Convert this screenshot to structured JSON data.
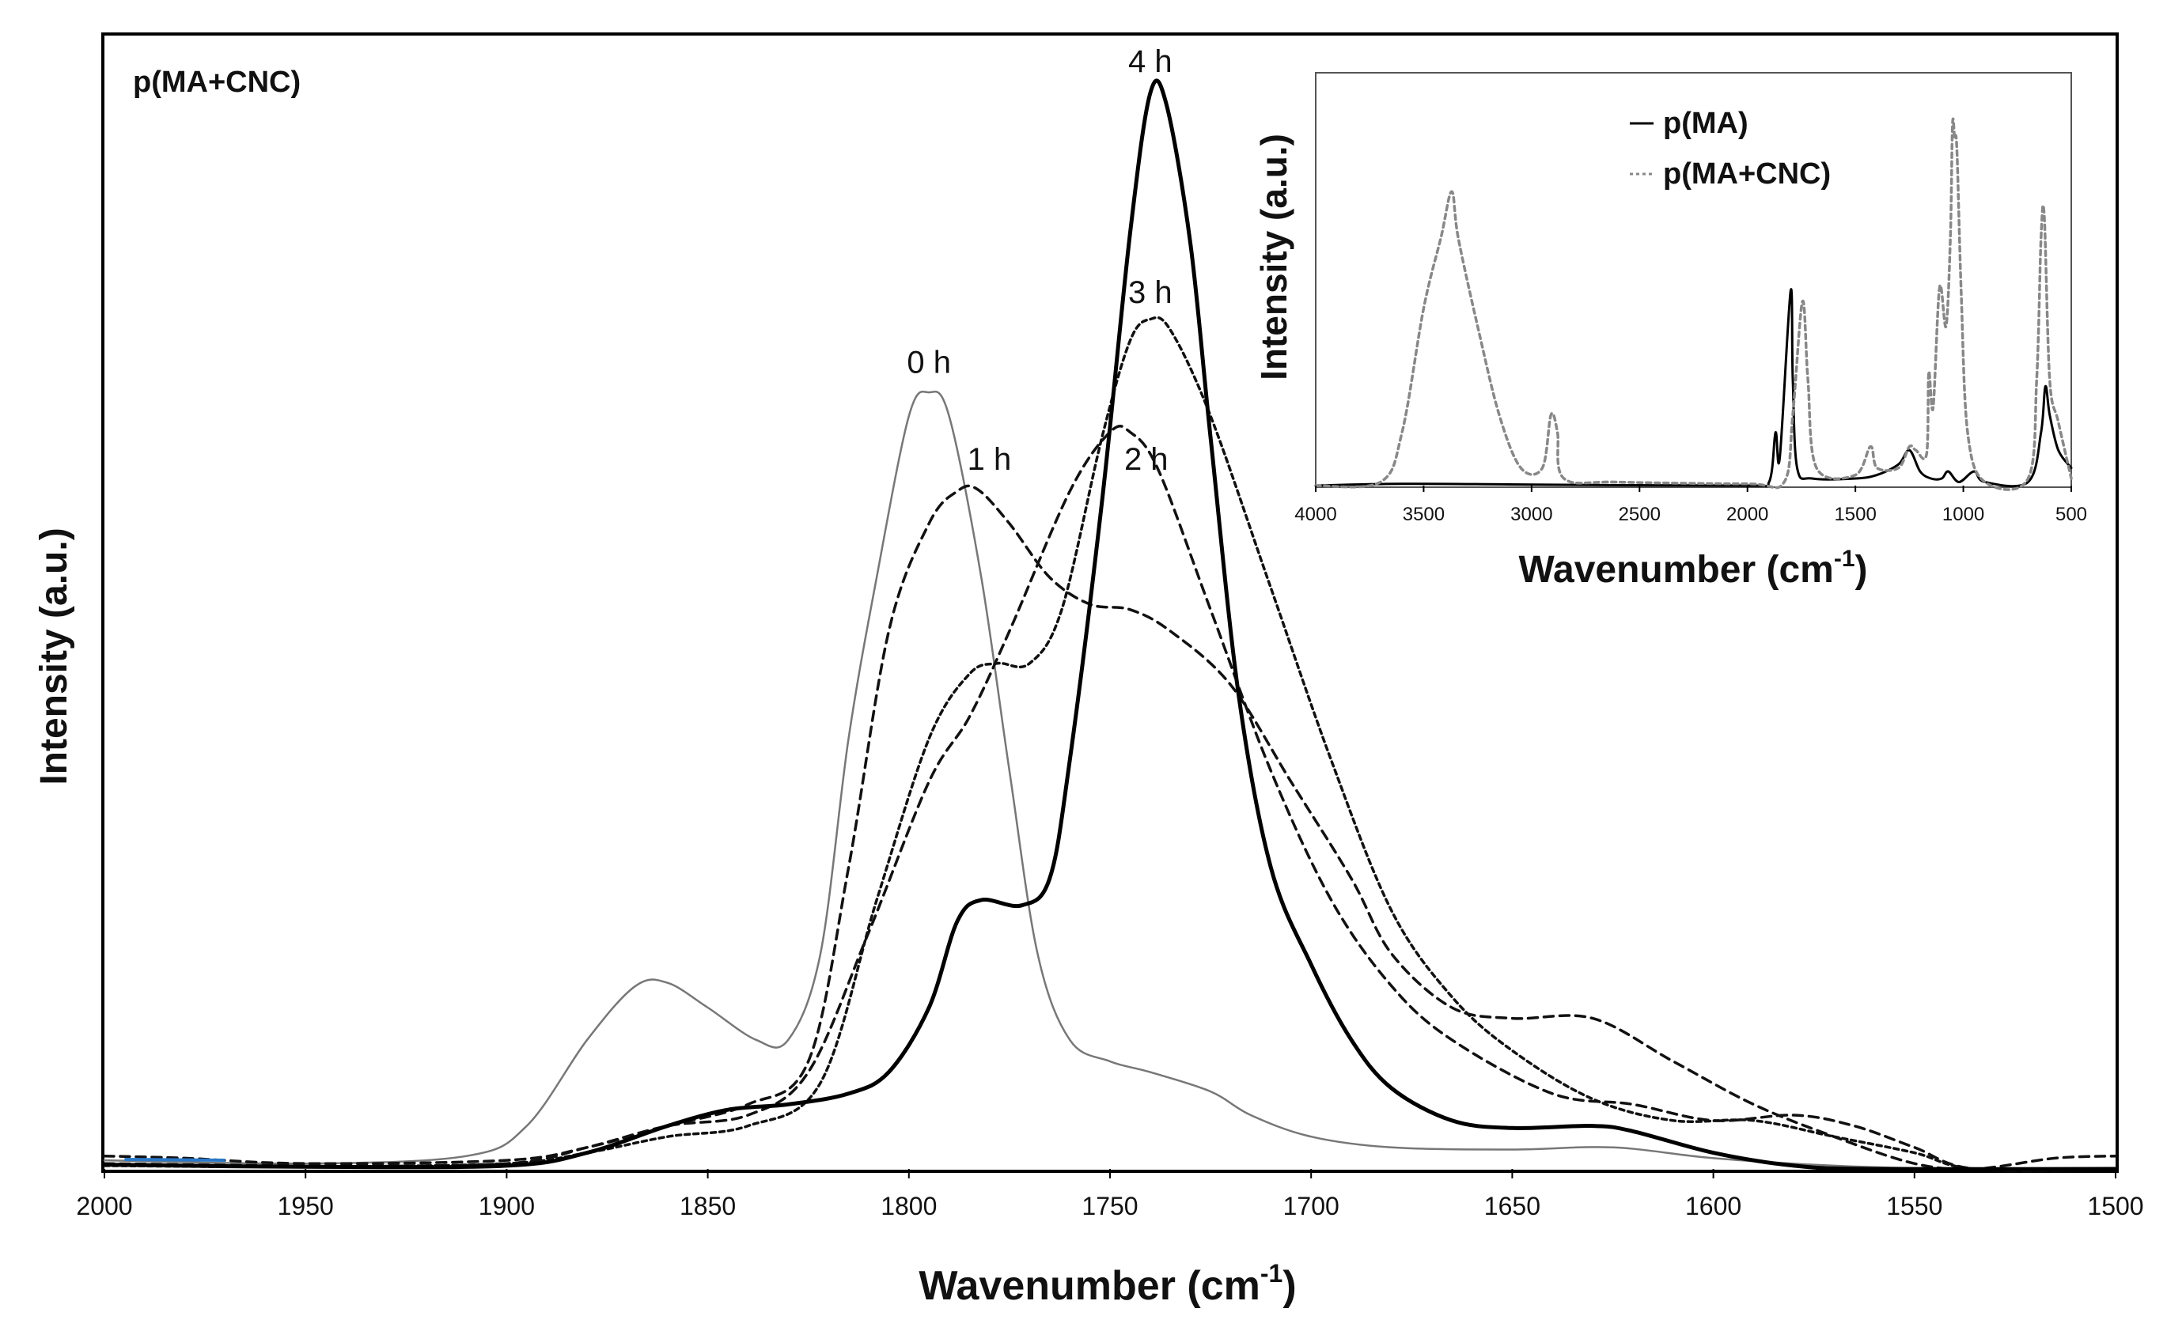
{
  "chart_data": [
    {
      "type": "line",
      "title": "p(MA+CNC)",
      "xlabel": "Wavenumber (cm",
      "xlabel_sup": "-1",
      "xlabel_close": ")",
      "ylabel": "Intensity (a.u.)",
      "xlim": [
        2000,
        1500
      ],
      "ylim": [
        0,
        1
      ],
      "xticks": [
        "2000",
        "1950",
        "1900",
        "1850",
        "1800",
        "1750",
        "1700",
        "1650",
        "1600",
        "1550",
        "1500"
      ],
      "series": [
        {
          "name": "0 h",
          "style": "thin-solid",
          "color": "#777777",
          "points": [
            [
              2000,
              0.008
            ],
            [
              1950,
              0.005
            ],
            [
              1910,
              0.012
            ],
            [
              1895,
              0.04
            ],
            [
              1880,
              0.12
            ],
            [
              1868,
              0.17
            ],
            [
              1860,
              0.173
            ],
            [
              1850,
              0.15
            ],
            [
              1838,
              0.12
            ],
            [
              1830,
              0.12
            ],
            [
              1822,
              0.2
            ],
            [
              1815,
              0.4
            ],
            [
              1808,
              0.55
            ],
            [
              1800,
              0.7
            ],
            [
              1795,
              0.722
            ],
            [
              1790,
              0.7
            ],
            [
              1782,
              0.55
            ],
            [
              1775,
              0.37
            ],
            [
              1768,
              0.2
            ],
            [
              1760,
              0.12
            ],
            [
              1750,
              0.1
            ],
            [
              1740,
              0.09
            ],
            [
              1725,
              0.072
            ],
            [
              1715,
              0.05
            ],
            [
              1700,
              0.03
            ],
            [
              1680,
              0.02
            ],
            [
              1650,
              0.018
            ],
            [
              1625,
              0.02
            ],
            [
              1600,
              0.01
            ],
            [
              1570,
              0.003
            ],
            [
              1540,
              0.0
            ],
            [
              1500,
              0.0
            ]
          ]
        },
        {
          "name": "1 h",
          "style": "dashed",
          "color": "#111111",
          "points": [
            [
              2000,
              0.012
            ],
            [
              1980,
              0.01
            ],
            [
              1950,
              0.005
            ],
            [
              1900,
              0.008
            ],
            [
              1880,
              0.02
            ],
            [
              1860,
              0.04
            ],
            [
              1840,
              0.06
            ],
            [
              1825,
              0.1
            ],
            [
              1815,
              0.28
            ],
            [
              1805,
              0.5
            ],
            [
              1795,
              0.6
            ],
            [
              1788,
              0.63
            ],
            [
              1783,
              0.632
            ],
            [
              1775,
              0.6
            ],
            [
              1765,
              0.55
            ],
            [
              1755,
              0.525
            ],
            [
              1745,
              0.52
            ],
            [
              1735,
              0.5
            ],
            [
              1720,
              0.45
            ],
            [
              1705,
              0.36
            ],
            [
              1690,
              0.27
            ],
            [
              1680,
              0.2
            ],
            [
              1665,
              0.15
            ],
            [
              1650,
              0.14
            ],
            [
              1630,
              0.14
            ],
            [
              1610,
              0.1
            ],
            [
              1590,
              0.06
            ],
            [
              1570,
              0.03
            ],
            [
              1550,
              0.005
            ],
            [
              1535,
              0.0
            ],
            [
              1515,
              0.01
            ],
            [
              1500,
              0.012
            ]
          ]
        },
        {
          "name": "2 h",
          "style": "dashed",
          "color": "#111111",
          "points": [
            [
              2000,
              0.005
            ],
            [
              1950,
              0.003
            ],
            [
              1900,
              0.005
            ],
            [
              1880,
              0.02
            ],
            [
              1860,
              0.04
            ],
            [
              1840,
              0.05
            ],
            [
              1825,
              0.09
            ],
            [
              1810,
              0.22
            ],
            [
              1795,
              0.36
            ],
            [
              1785,
              0.42
            ],
            [
              1775,
              0.5
            ],
            [
              1760,
              0.63
            ],
            [
              1750,
              0.685
            ],
            [
              1745,
              0.685
            ],
            [
              1738,
              0.65
            ],
            [
              1725,
              0.52
            ],
            [
              1710,
              0.37
            ],
            [
              1695,
              0.25
            ],
            [
              1680,
              0.17
            ],
            [
              1665,
              0.12
            ],
            [
              1640,
              0.07
            ],
            [
              1620,
              0.06
            ],
            [
              1600,
              0.045
            ],
            [
              1580,
              0.05
            ],
            [
              1565,
              0.04
            ],
            [
              1550,
              0.02
            ],
            [
              1535,
              0.0
            ],
            [
              1500,
              0.0
            ]
          ]
        },
        {
          "name": "3 h",
          "style": "dotted",
          "color": "#111111",
          "points": [
            [
              2000,
              0.003
            ],
            [
              1950,
              0.002
            ],
            [
              1900,
              0.005
            ],
            [
              1880,
              0.015
            ],
            [
              1860,
              0.03
            ],
            [
              1840,
              0.04
            ],
            [
              1822,
              0.08
            ],
            [
              1808,
              0.25
            ],
            [
              1795,
              0.4
            ],
            [
              1785,
              0.46
            ],
            [
              1778,
              0.47
            ],
            [
              1770,
              0.47
            ],
            [
              1762,
              0.52
            ],
            [
              1752,
              0.68
            ],
            [
              1745,
              0.77
            ],
            [
              1740,
              0.79
            ],
            [
              1735,
              0.78
            ],
            [
              1725,
              0.7
            ],
            [
              1710,
              0.54
            ],
            [
              1695,
              0.38
            ],
            [
              1680,
              0.24
            ],
            [
              1665,
              0.16
            ],
            [
              1650,
              0.11
            ],
            [
              1630,
              0.065
            ],
            [
              1610,
              0.045
            ],
            [
              1590,
              0.045
            ],
            [
              1570,
              0.03
            ],
            [
              1550,
              0.015
            ],
            [
              1535,
              0.0
            ],
            [
              1500,
              0.0
            ]
          ]
        },
        {
          "name": "4 h",
          "style": "bold-solid",
          "color": "#000000",
          "points": [
            [
              2000,
              0.004
            ],
            [
              1950,
              0.002
            ],
            [
              1900,
              0.003
            ],
            [
              1880,
              0.015
            ],
            [
              1860,
              0.04
            ],
            [
              1845,
              0.055
            ],
            [
              1830,
              0.06
            ],
            [
              1815,
              0.07
            ],
            [
              1805,
              0.09
            ],
            [
              1795,
              0.15
            ],
            [
              1788,
              0.23
            ],
            [
              1782,
              0.25
            ],
            [
              1772,
              0.245
            ],
            [
              1765,
              0.27
            ],
            [
              1760,
              0.38
            ],
            [
              1752,
              0.62
            ],
            [
              1745,
              0.87
            ],
            [
              1740,
              1.0
            ],
            [
              1736,
              0.99
            ],
            [
              1730,
              0.86
            ],
            [
              1725,
              0.68
            ],
            [
              1718,
              0.44
            ],
            [
              1710,
              0.28
            ],
            [
              1700,
              0.19
            ],
            [
              1690,
              0.12
            ],
            [
              1680,
              0.075
            ],
            [
              1665,
              0.045
            ],
            [
              1650,
              0.038
            ],
            [
              1630,
              0.04
            ],
            [
              1620,
              0.035
            ],
            [
              1600,
              0.015
            ],
            [
              1580,
              0.003
            ],
            [
              1560,
              0.0
            ],
            [
              1500,
              0.0
            ]
          ]
        }
      ],
      "annotations": [
        {
          "text": "0 h",
          "x": 1795,
          "y": 0.74
        },
        {
          "text": "1 h",
          "x": 1780,
          "y": 0.65
        },
        {
          "text": "2 h",
          "x": 1741,
          "y": 0.65
        },
        {
          "text": "3 h",
          "x": 1740,
          "y": 0.805
        },
        {
          "text": "4 h",
          "x": 1740,
          "y": 1.02
        }
      ]
    },
    {
      "type": "line",
      "title": "inset",
      "xlabel": "Wavenumber (cm",
      "xlabel_sup": "-1",
      "xlabel_close": ")",
      "ylabel": "Intensity (a.u.)",
      "xlim": [
        4000,
        500
      ],
      "ylim": [
        0,
        1
      ],
      "xticks": [
        "4000",
        "3500",
        "3000",
        "2500",
        "2000",
        "1500",
        "1000",
        "500"
      ],
      "legend": [
        "p(MA)",
        "p(MA+CNC)"
      ],
      "series": [
        {
          "name": "p(MA)",
          "style": "solid",
          "color": "#000000",
          "points": [
            [
              4000,
              0.0
            ],
            [
              3600,
              0.005
            ],
            [
              3000,
              0.003
            ],
            [
              2000,
              0.0
            ],
            [
              1900,
              0.01
            ],
            [
              1870,
              0.15
            ],
            [
              1850,
              0.08
            ],
            [
              1800,
              0.55
            ],
            [
              1790,
              0.3
            ],
            [
              1770,
              0.05
            ],
            [
              1700,
              0.02
            ],
            [
              1500,
              0.02
            ],
            [
              1400,
              0.03
            ],
            [
              1300,
              0.06
            ],
            [
              1250,
              0.1
            ],
            [
              1200,
              0.04
            ],
            [
              1150,
              0.02
            ],
            [
              1100,
              0.02
            ],
            [
              1070,
              0.04
            ],
            [
              1020,
              0.01
            ],
            [
              950,
              0.04
            ],
            [
              900,
              0.01
            ],
            [
              700,
              0.01
            ],
            [
              640,
              0.15
            ],
            [
              620,
              0.28
            ],
            [
              600,
              0.2
            ],
            [
              560,
              0.1
            ],
            [
              500,
              0.05
            ]
          ]
        },
        {
          "name": "p(MA+CNC)",
          "style": "dotted",
          "color": "#888888",
          "points": [
            [
              4000,
              0.0
            ],
            [
              3700,
              0.01
            ],
            [
              3600,
              0.15
            ],
            [
              3500,
              0.5
            ],
            [
              3420,
              0.7
            ],
            [
              3370,
              0.83
            ],
            [
              3340,
              0.7
            ],
            [
              3250,
              0.45
            ],
            [
              3150,
              0.2
            ],
            [
              3050,
              0.05
            ],
            [
              2950,
              0.05
            ],
            [
              2910,
              0.2
            ],
            [
              2880,
              0.15
            ],
            [
              2850,
              0.02
            ],
            [
              2600,
              0.01
            ],
            [
              2000,
              0.005
            ],
            [
              1830,
              0.01
            ],
            [
              1790,
              0.2
            ],
            [
              1745,
              0.52
            ],
            [
              1720,
              0.3
            ],
            [
              1680,
              0.05
            ],
            [
              1500,
              0.03
            ],
            [
              1430,
              0.11
            ],
            [
              1400,
              0.05
            ],
            [
              1300,
              0.05
            ],
            [
              1250,
              0.11
            ],
            [
              1220,
              0.1
            ],
            [
              1170,
              0.09
            ],
            [
              1160,
              0.32
            ],
            [
              1140,
              0.22
            ],
            [
              1110,
              0.56
            ],
            [
              1080,
              0.45
            ],
            [
              1060,
              0.7
            ],
            [
              1050,
              1.02
            ],
            [
              1040,
              0.98
            ],
            [
              1030,
              0.95
            ],
            [
              1010,
              0.55
            ],
            [
              980,
              0.15
            ],
            [
              900,
              0.01
            ],
            [
              700,
              0.02
            ],
            [
              660,
              0.3
            ],
            [
              640,
              0.7
            ],
            [
              625,
              0.76
            ],
            [
              600,
              0.3
            ],
            [
              560,
              0.18
            ],
            [
              500,
              0.02
            ]
          ]
        }
      ]
    }
  ]
}
